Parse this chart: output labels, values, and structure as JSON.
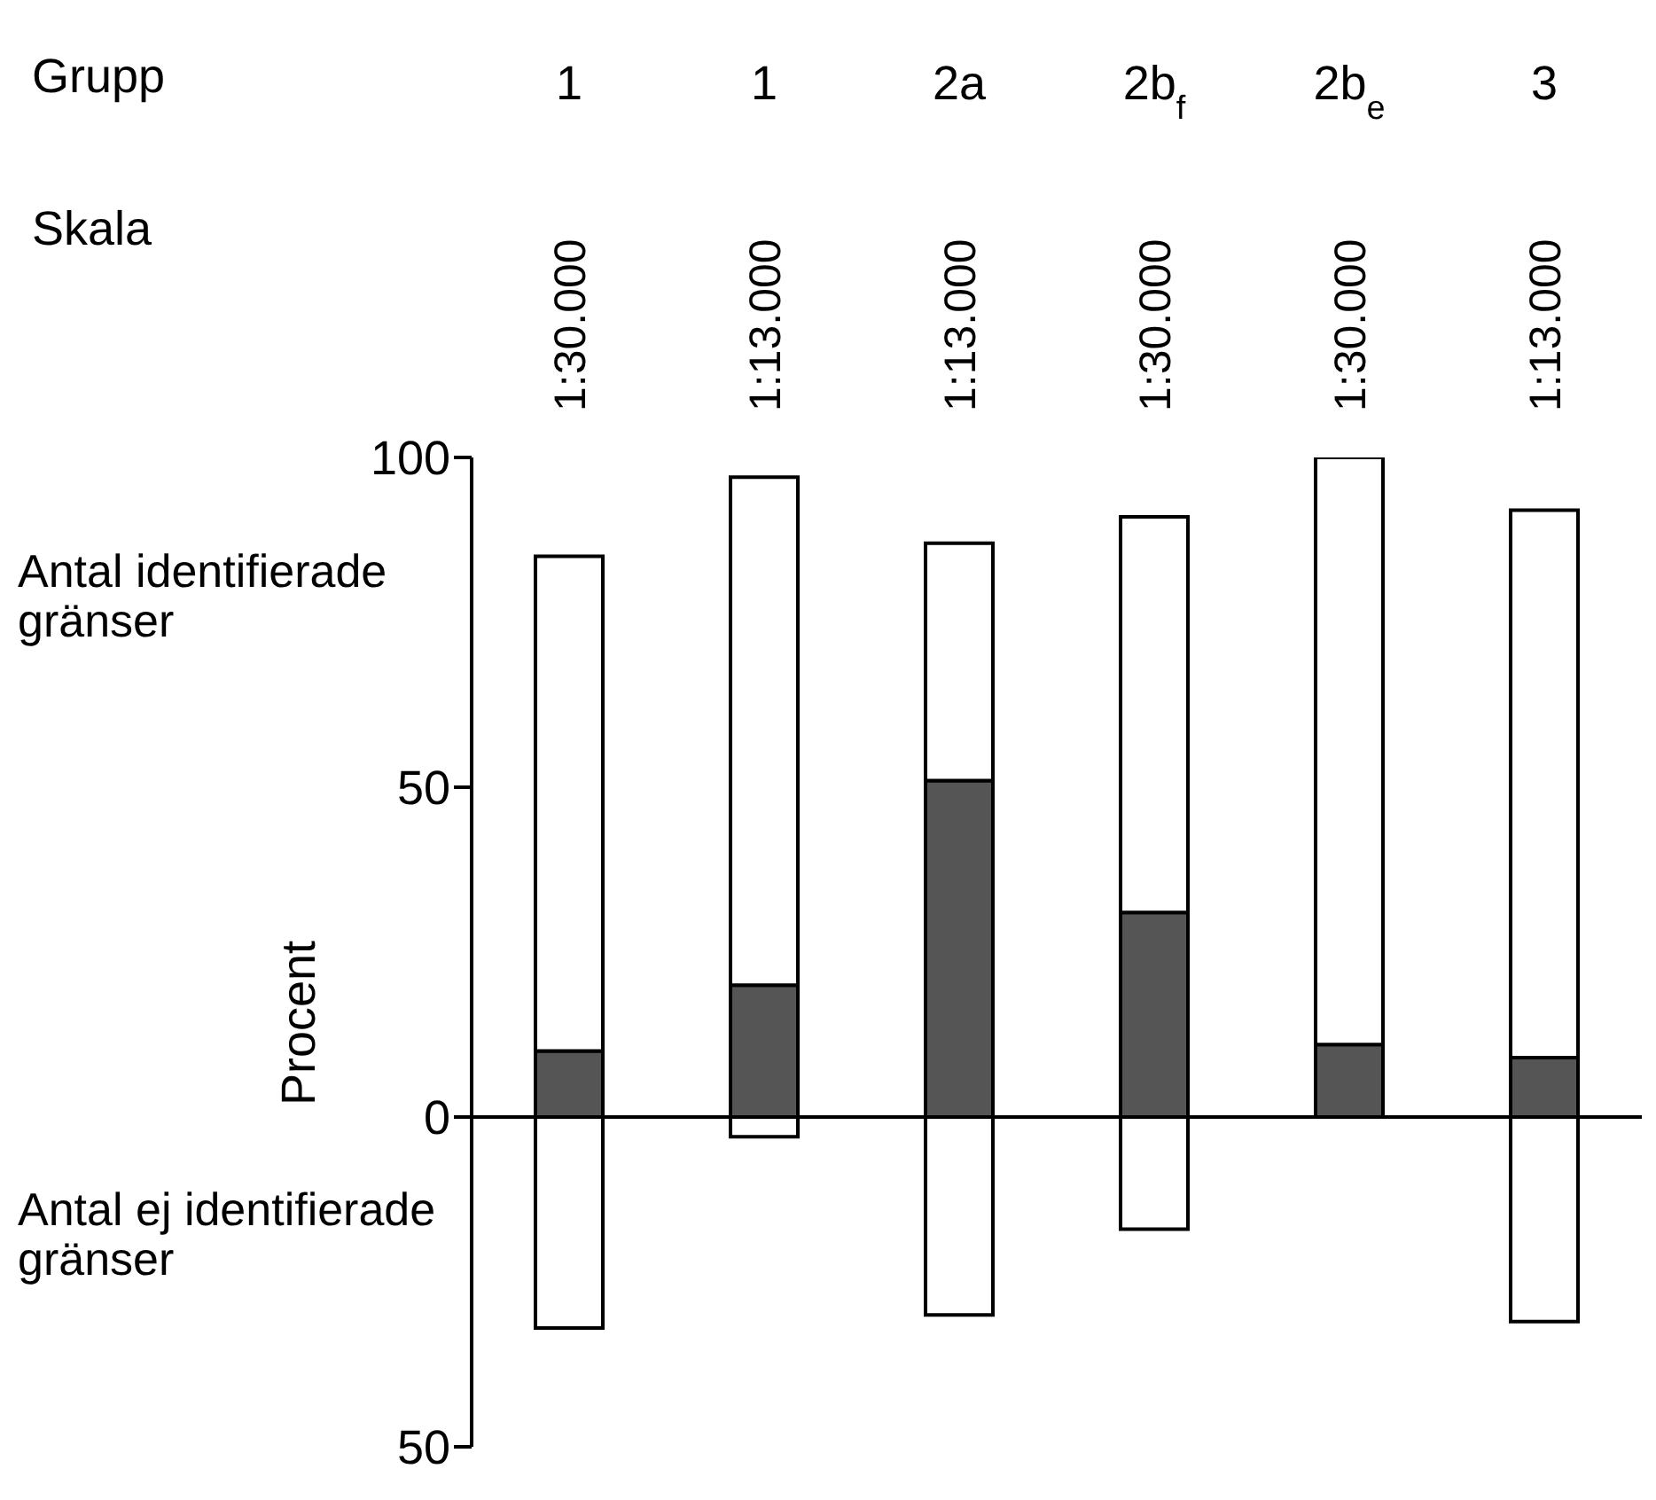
{
  "chart_data": {
    "type": "bar",
    "stacked": true,
    "ylabel": "Procent",
    "categories": [
      "1",
      "1",
      "2a",
      "2b$_{f}$",
      "2b$_{e}$",
      "3"
    ],
    "series": [
      {
        "color": "#555555",
        "values": [
          10,
          20,
          51,
          31,
          11,
          9
        ]
      },
      {
        "color": "#ffffff",
        "values": [
          75,
          77,
          36,
          60,
          89,
          83
        ]
      },
      {
        "color": "#ffffff",
        "values": [
          -32,
          -3,
          -30,
          -17,
          null,
          -31
        ]
      }
    ],
    "ylim": [
      -50,
      100
    ],
    "yticks": [
      {
        "value": -50,
        "label": "50"
      },
      0,
      50,
      100
    ],
    "ref_lines": [
      {
        "axis": "y",
        "value": 0
      }
    ],
    "annotations": [
      "Grupp",
      "Skala",
      "1:30.000",
      "1:13.000",
      "1:13.000",
      "1:30.000",
      "1:30.000",
      "1:13.000",
      "Antal identifierade gränser",
      "Antal ej identifierade gränser"
    ],
    "grid": false
  }
}
